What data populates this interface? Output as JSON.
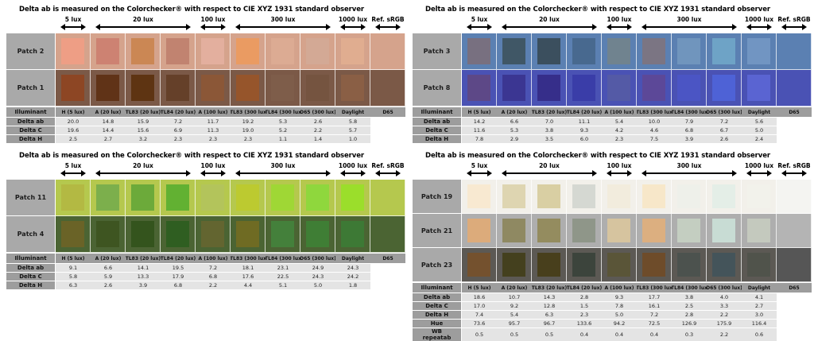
{
  "title": "Delta ab is measured on the Colorchecker® with respect to CIE XYZ 1931 standard observer",
  "row_header_label": "Illuminant",
  "lux_groups": [
    {
      "label": "5 lux",
      "span": 1
    },
    {
      "label": "20 lux",
      "span": 3
    },
    {
      "label": "100 lux",
      "span": 1
    },
    {
      "label": "300 lux",
      "span": 3
    },
    {
      "label": "1000 lux",
      "span": 1
    },
    {
      "label": "Ref. sRGB",
      "span": 1
    }
  ],
  "illuminants": [
    "H (5 lux)",
    "A (20 lux)",
    "TL83 (20 lux)",
    "TL84 (20 lux)",
    "A (100 lux)",
    "TL83 (300 lux",
    "TL84 (300 lux",
    "D65 (300 lux)",
    "Daylight",
    "D65"
  ],
  "colors": {
    "patch_label_bg": "#a9a9a9",
    "table_header_bg": "#9d9d9d",
    "table_cell_bg": "#e4e4e4",
    "arrow": "#000000"
  },
  "chart_data": [
    {
      "type": "table",
      "name": "panel-top-left",
      "title": "Delta ab is measured on the Colorchecker® with respect to CIE XYZ 1931 standard observer",
      "patches": [
        {
          "label": "Patch 2",
          "bg": "#d5a38c",
          "ref": "#d5a38c",
          "colors": [
            "#ee9e85",
            "#cd8272",
            "#cb8754",
            "#c18370",
            "#e3af9e",
            "#ea9b62",
            "#dcab93",
            "#d3a995",
            "#e0ad90"
          ]
        },
        {
          "label": "Patch 1",
          "bg": "#7b5947",
          "ref": "#7b5947",
          "colors": [
            "#8d4624",
            "#603317",
            "#5e3412",
            "#654029",
            "#8b5737",
            "#96552b",
            "#7e5d4a",
            "#755440",
            "#8a5f45"
          ]
        }
      ],
      "rows": [
        {
          "label": "Delta ab",
          "values": [
            "20.0",
            "14.8",
            "15.9",
            "7.2",
            "11.7",
            "19.2",
            "5.3",
            "2.6",
            "5.8"
          ]
        },
        {
          "label": "Delta C",
          "values": [
            "19.6",
            "14.4",
            "15.6",
            "6.9",
            "11.3",
            "19.0",
            "5.2",
            "2.2",
            "5.7"
          ]
        },
        {
          "label": "Delta H",
          "values": [
            "2.5",
            "2.7",
            "3.2",
            "2.3",
            "2.3",
            "2.3",
            "1.1",
            "1.4",
            "1.0"
          ]
        }
      ]
    },
    {
      "type": "table",
      "name": "panel-top-right",
      "title": "Delta ab is measured on the Colorchecker® with respect to CIE XYZ 1931 standard observer",
      "patches": [
        {
          "label": "Patch 3",
          "bg": "#5b80b2",
          "ref": "#5b80b2",
          "colors": [
            "#787080",
            "#405766",
            "#3b4f5e",
            "#48698f",
            "#70838f",
            "#7b7583",
            "#7095bd",
            "#6ea3c6",
            "#7195c2"
          ]
        },
        {
          "label": "Patch 8",
          "bg": "#4a52b4",
          "ref": "#4a52b4",
          "colors": [
            "#5d4887",
            "#3b3692",
            "#362e8a",
            "#3a3da8",
            "#545aa6",
            "#5c4898",
            "#4b55c4",
            "#4e62d6",
            "#5a64d2"
          ]
        }
      ],
      "rows": [
        {
          "label": "Delta ab",
          "values": [
            "14.2",
            "6.6",
            "7.0",
            "11.1",
            "5.4",
            "10.0",
            "7.9",
            "7.2",
            "5.6"
          ]
        },
        {
          "label": "Delta C",
          "values": [
            "11.6",
            "5.3",
            "3.8",
            "9.3",
            "4.2",
            "4.6",
            "6.8",
            "6.7",
            "5.0"
          ]
        },
        {
          "label": "Delta H",
          "values": [
            "7.8",
            "2.9",
            "3.5",
            "6.0",
            "2.3",
            "7.5",
            "3.9",
            "2.6",
            "2.4"
          ]
        }
      ]
    },
    {
      "type": "table",
      "name": "panel-bottom-left",
      "title": "Delta ab is measured on the Colorchecker® with respect to CIE XYZ 1931 standard observer",
      "patches": [
        {
          "label": "Patch 11",
          "bg": "#b5c84e",
          "ref": "#b5c84e",
          "colors": [
            "#b3b943",
            "#7caf4c",
            "#6caa3a",
            "#62b132",
            "#b3c45b",
            "#bcca30",
            "#9fd735",
            "#8fd73d",
            "#9bde2b"
          ]
        },
        {
          "label": "Patch 4",
          "bg": "#4b6433",
          "ref": "#4b6433",
          "colors": [
            "#6a6327",
            "#3e5521",
            "#34541d",
            "#2f5e21",
            "#636530",
            "#6f6b23",
            "#44803b",
            "#3f7e35",
            "#3d7935"
          ]
        }
      ],
      "rows": [
        {
          "label": "Delta ab",
          "values": [
            "9.1",
            "6.6",
            "14.1",
            "19.5",
            "7.2",
            "18.1",
            "23.1",
            "24.9",
            "24.3"
          ]
        },
        {
          "label": "Delta C",
          "values": [
            "5.8",
            "5.9",
            "13.3",
            "17.9",
            "6.8",
            "17.6",
            "22.5",
            "24.3",
            "24.2"
          ]
        },
        {
          "label": "Delta H",
          "values": [
            "6.3",
            "2.6",
            "3.9",
            "6.8",
            "2.2",
            "4.4",
            "5.1",
            "5.0",
            "1.8"
          ]
        }
      ]
    },
    {
      "type": "table",
      "name": "panel-bottom-right",
      "title": "Delta ab is measured on the Colorchecker® with respect to CIE XYZ 1931 standard observer",
      "patches": [
        {
          "label": "Patch 19",
          "bg": "#f2f0ea",
          "ref": "#f4f4f1",
          "colors": [
            "#f8e9d1",
            "#ded5b1",
            "#d9cfa3",
            "#d5d8d2",
            "#f2ecdd",
            "#f7e7c9",
            "#eef0ea",
            "#e4eee7",
            "#f2f2eb"
          ]
        },
        {
          "label": "Patch 21",
          "bg": "#aeaeae",
          "ref": "#b4b4b4",
          "colors": [
            "#dcab7b",
            "#8f8962",
            "#948c5f",
            "#8f9689",
            "#d6c49f",
            "#dcaf80",
            "#c4cec1",
            "#c8dcd4",
            "#c4c9be"
          ]
        },
        {
          "label": "Patch 23",
          "bg": "#5c5954",
          "ref": "#565656",
          "colors": [
            "#74512e",
            "#44401e",
            "#483f1c",
            "#3c443c",
            "#5a5538",
            "#6e4c2a",
            "#4c524e",
            "#44545a",
            "#50534b"
          ]
        }
      ],
      "rows": [
        {
          "label": "Delta ab",
          "values": [
            "18.6",
            "10.7",
            "14.3",
            "2.8",
            "9.3",
            "17.7",
            "3.8",
            "4.0",
            "4.1"
          ]
        },
        {
          "label": "Delta C",
          "values": [
            "17.0",
            "9.2",
            "12.8",
            "1.5",
            "7.8",
            "16.1",
            "2.5",
            "3.3",
            "2.7"
          ]
        },
        {
          "label": "Delta H",
          "values": [
            "7.4",
            "5.4",
            "6.3",
            "2.3",
            "5.0",
            "7.2",
            "2.8",
            "2.2",
            "3.0"
          ]
        },
        {
          "label": "Hue",
          "values": [
            "73.6",
            "95.7",
            "96.7",
            "133.6",
            "94.2",
            "72.5",
            "126.9",
            "175.9",
            "116.4"
          ]
        },
        {
          "label": "WB\nrepeatab",
          "values": [
            "0.5",
            "0.5",
            "0.5",
            "0.4",
            "0.4",
            "0.4",
            "0.3",
            "2.2",
            "0.6"
          ]
        }
      ]
    }
  ]
}
